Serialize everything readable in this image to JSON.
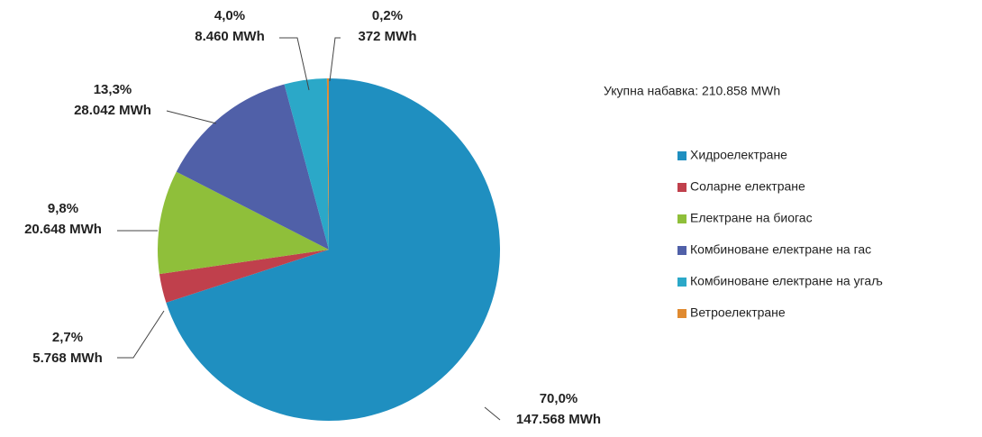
{
  "chart_data": {
    "type": "pie",
    "subtitle": "Укупна набавка:  210.858 MWh",
    "categories": [
      "Хидроелектране",
      "Соларне електране",
      "Електране на биогас",
      "Комбиноване електране на гас",
      "Комбиноване електране на угаљ",
      "Ветроелектране"
    ],
    "values": [
      147568,
      5768,
      20648,
      28042,
      8460,
      372
    ],
    "value_labels": [
      "147.568 MWh",
      "5.768 MWh",
      "20.648 MWh",
      "28.042 MWh",
      "8.460 MWh",
      "372 MWh"
    ],
    "percentages": [
      70.0,
      2.7,
      9.8,
      13.3,
      4.0,
      0.2
    ],
    "percentage_labels": [
      "70,0%",
      "2,7%",
      "9,8%",
      "13,3%",
      "4,0%",
      "0,2%"
    ],
    "colors": [
      "#1f8fc0",
      "#c0404c",
      "#8fbf3a",
      "#5060a8",
      "#2ba8c8",
      "#e08a30"
    ],
    "legend": "right"
  }
}
